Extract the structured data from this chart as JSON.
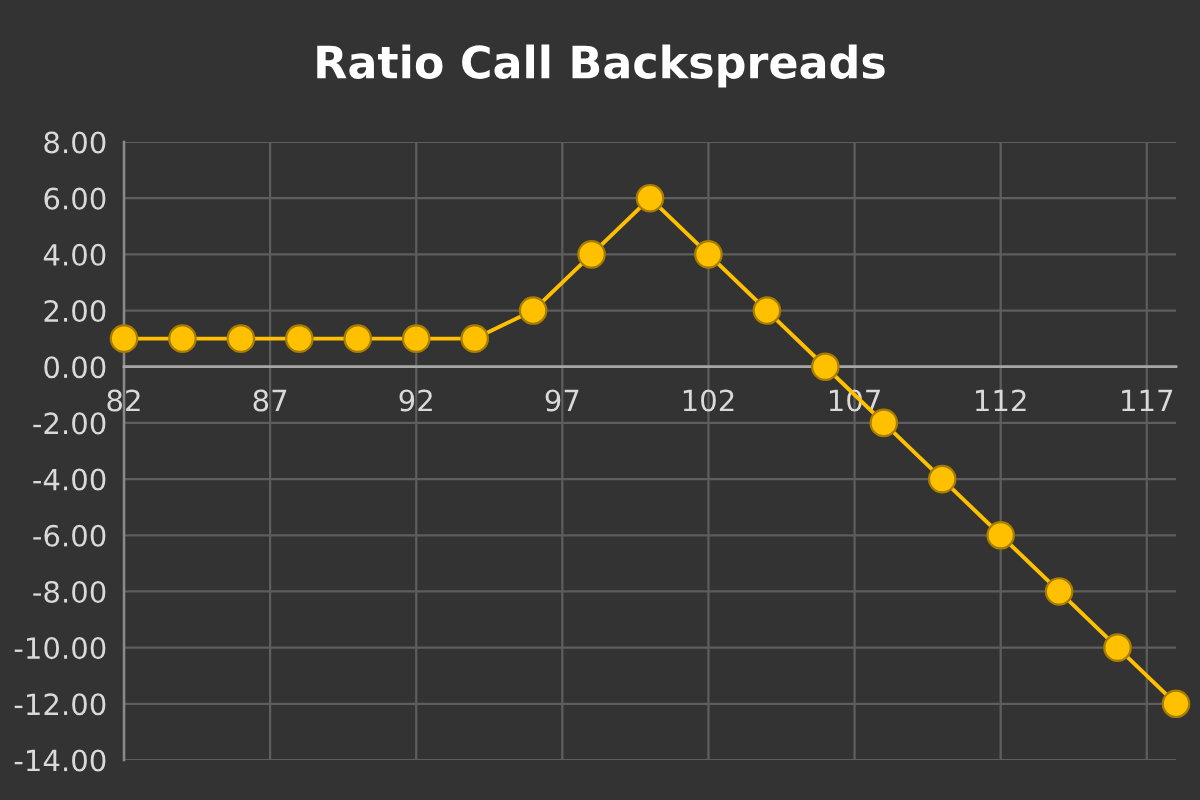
{
  "chart_data": {
    "type": "line",
    "title": "Ratio Call Backspreads",
    "x": [
      82,
      84,
      86,
      88,
      90,
      92,
      94,
      96,
      98,
      100,
      102,
      104,
      106,
      108,
      110,
      112,
      114,
      116,
      118
    ],
    "values": [
      1,
      1,
      1,
      1,
      1,
      1,
      1,
      2,
      4,
      6,
      4,
      2,
      0,
      -2,
      -4,
      -6,
      -8,
      -10,
      -12
    ],
    "color": "#ffc000",
    "xlim": [
      82,
      118
    ],
    "xticks": [
      82,
      87,
      92,
      97,
      102,
      107,
      112,
      117
    ],
    "ylim": [
      -14,
      8
    ],
    "yticks": [
      {
        "value": 8,
        "label": "8.00"
      },
      {
        "value": 6,
        "label": "6.00"
      },
      {
        "value": 4,
        "label": "4.00"
      },
      {
        "value": 2,
        "label": "2.00"
      },
      {
        "value": 0,
        "label": "0.00"
      },
      {
        "value": -2,
        "label": "-2.00"
      },
      {
        "value": -4,
        "label": "-4.00"
      },
      {
        "value": -6,
        "label": "-6.00"
      },
      {
        "value": -8,
        "label": "-8.00"
      },
      {
        "value": -10,
        "label": "-10.00"
      },
      {
        "value": -12,
        "label": "-12.00"
      },
      {
        "value": -14,
        "label": "-14.00"
      }
    ],
    "grid": true,
    "marker": "circle",
    "line_style": "solid"
  }
}
